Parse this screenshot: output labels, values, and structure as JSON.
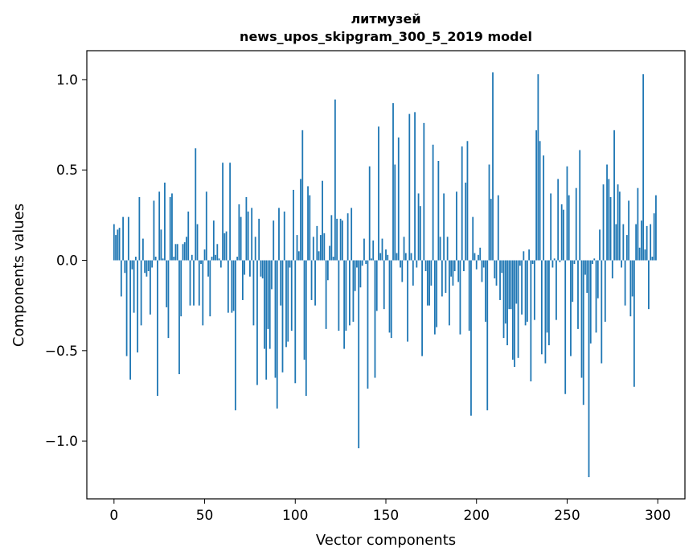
{
  "chart_data": {
    "type": "bar",
    "title": "литмузей",
    "subtitle": "news_upos_skipgram_300_5_2019 model",
    "xlabel": "Vector components",
    "ylabel": "Components values",
    "xlim": [
      -15,
      315
    ],
    "ylim": [
      -1.32,
      1.16
    ],
    "xticks": [
      0,
      50,
      100,
      150,
      200,
      250,
      300
    ],
    "xtick_labels": [
      "0",
      "50",
      "100",
      "150",
      "200",
      "250",
      "300"
    ],
    "yticks": [
      -1.0,
      -0.5,
      0.0,
      0.5,
      1.0
    ],
    "ytick_labels": [
      "−1.0",
      "−0.5",
      "0.0",
      "0.5",
      "1.0"
    ],
    "grid": false,
    "bar_color": "#1f77b4",
    "x": [
      0,
      1,
      2,
      3,
      4,
      5,
      6,
      7,
      8,
      9,
      10,
      11,
      12,
      13,
      14,
      15,
      16,
      17,
      18,
      19,
      20,
      21,
      22,
      23,
      24,
      25,
      26,
      27,
      28,
      29,
      30,
      31,
      32,
      33,
      34,
      35,
      36,
      37,
      38,
      39,
      40,
      41,
      42,
      43,
      44,
      45,
      46,
      47,
      48,
      49,
      50,
      51,
      52,
      53,
      54,
      55,
      56,
      57,
      58,
      59,
      60,
      61,
      62,
      63,
      64,
      65,
      66,
      67,
      68,
      69,
      70,
      71,
      72,
      73,
      74,
      75,
      76,
      77,
      78,
      79,
      80,
      81,
      82,
      83,
      84,
      85,
      86,
      87,
      88,
      89,
      90,
      91,
      92,
      93,
      94,
      95,
      96,
      97,
      98,
      99,
      100,
      101,
      102,
      103,
      104,
      105,
      106,
      107,
      108,
      109,
      110,
      111,
      112,
      113,
      114,
      115,
      116,
      117,
      118,
      119,
      120,
      121,
      122,
      123,
      124,
      125,
      126,
      127,
      128,
      129,
      130,
      131,
      132,
      133,
      134,
      135,
      136,
      137,
      138,
      139,
      140,
      141,
      142,
      143,
      144,
      145,
      146,
      147,
      148,
      149,
      150,
      151,
      152,
      153,
      154,
      155,
      156,
      157,
      158,
      159,
      160,
      161,
      162,
      163,
      164,
      165,
      166,
      167,
      168,
      169,
      170,
      171,
      172,
      173,
      174,
      175,
      176,
      177,
      178,
      179,
      180,
      181,
      182,
      183,
      184,
      185,
      186,
      187,
      188,
      189,
      190,
      191,
      192,
      193,
      194,
      195,
      196,
      197,
      198,
      199,
      200,
      201,
      202,
      203,
      204,
      205,
      206,
      207,
      208,
      209,
      210,
      211,
      212,
      213,
      214,
      215,
      216,
      217,
      218,
      219,
      220,
      221,
      222,
      223,
      224,
      225,
      226,
      227,
      228,
      229,
      230,
      231,
      232,
      233,
      234,
      235,
      236,
      237,
      238,
      239,
      240,
      241,
      242,
      243,
      244,
      245,
      246,
      247,
      248,
      249,
      250,
      251,
      252,
      253,
      254,
      255,
      256,
      257,
      258,
      259,
      260,
      261,
      262,
      263,
      264,
      265,
      266,
      267,
      268,
      269,
      270,
      271,
      272,
      273,
      274,
      275,
      276,
      277,
      278,
      279,
      280,
      281,
      282,
      283,
      284,
      285,
      286,
      287,
      288,
      289,
      290,
      291,
      292,
      293,
      294,
      295,
      296,
      297,
      298,
      299
    ],
    "values": [
      0.2,
      0.14,
      0.17,
      0.18,
      -0.2,
      0.24,
      -0.07,
      -0.53,
      0.24,
      -0.66,
      -0.05,
      -0.29,
      0.02,
      -0.51,
      0.35,
      -0.36,
      0.12,
      -0.07,
      -0.09,
      -0.06,
      -0.3,
      -0.04,
      0.33,
      0.02,
      -0.75,
      0.38,
      0.17,
      0.01,
      0.43,
      -0.26,
      -0.43,
      0.35,
      0.37,
      0.02,
      0.09,
      0.09,
      -0.63,
      -0.31,
      0.09,
      0.1,
      0.13,
      0.27,
      -0.25,
      0.03,
      -0.25,
      0.62,
      0.2,
      -0.25,
      -0.02,
      -0.36,
      0.06,
      0.38,
      -0.09,
      -0.31,
      0.02,
      0.22,
      0.03,
      0.09,
      0.01,
      -0.04,
      0.54,
      0.15,
      0.16,
      -0.29,
      0.54,
      -0.29,
      -0.28,
      -0.83,
      0.02,
      0.31,
      0.24,
      -0.22,
      -0.08,
      0.35,
      0.27,
      -0.09,
      0.29,
      -0.36,
      0.13,
      -0.69,
      0.23,
      -0.09,
      -0.1,
      -0.49,
      -0.66,
      -0.38,
      -0.49,
      -0.16,
      0.22,
      -0.65,
      -0.82,
      0.29,
      -0.25,
      -0.62,
      0.27,
      -0.48,
      -0.45,
      -0.04,
      -0.39,
      0.39,
      -0.68,
      0.14,
      0.05,
      0.45,
      0.72,
      -0.55,
      -0.75,
      0.41,
      0.36,
      -0.22,
      0.13,
      -0.25,
      0.19,
      0.05,
      0.14,
      0.44,
      0.15,
      -0.38,
      -0.11,
      0.08,
      0.25,
      0.02,
      0.89,
      0.23,
      -0.39,
      0.23,
      0.22,
      -0.49,
      -0.39,
      0.26,
      -0.36,
      0.29,
      -0.34,
      -0.17,
      -0.04,
      -1.04,
      -0.15,
      -0.03,
      0.12,
      -0.02,
      -0.71,
      0.52,
      0.01,
      0.11,
      -0.65,
      -0.28,
      0.74,
      0.04,
      0.12,
      -0.27,
      0.06,
      0.03,
      -0.4,
      -0.43,
      0.87,
      0.53,
      0.04,
      0.68,
      -0.04,
      -0.12,
      0.13,
      0.04,
      -0.45,
      0.81,
      0.04,
      -0.14,
      0.82,
      -0.04,
      0.37,
      0.3,
      -0.53,
      0.76,
      -0.06,
      -0.25,
      -0.25,
      -0.14,
      0.64,
      -0.41,
      -0.37,
      0.55,
      0.13,
      -0.2,
      0.37,
      -0.18,
      0.13,
      -0.36,
      -0.09,
      -0.14,
      -0.06,
      0.38,
      -0.12,
      -0.41,
      0.63,
      -0.06,
      0.43,
      0.66,
      -0.39,
      -0.86,
      0.24,
      0.04,
      -0.05,
      0.03,
      0.07,
      -0.12,
      -0.04,
      -0.34,
      -0.83,
      0.53,
      0.34,
      1.04,
      -0.1,
      -0.14,
      0.36,
      -0.22,
      -0.07,
      -0.43,
      -0.35,
      -0.47,
      -0.27,
      -0.27,
      -0.55,
      -0.59,
      -0.24,
      -0.54,
      -0.03,
      -0.3,
      0.05,
      -0.36,
      -0.34,
      0.06,
      -0.67,
      -0.02,
      -0.33,
      0.72,
      1.03,
      0.66,
      -0.52,
      0.58,
      -0.57,
      -0.4,
      -0.47,
      0.37,
      -0.04,
      0.01,
      -0.33,
      0.45,
      -0.01,
      0.31,
      0.28,
      -0.74,
      0.52,
      0.36,
      -0.53,
      -0.23,
      -0.02,
      0.4,
      -0.38,
      0.61,
      -0.65,
      -0.8,
      -0.08,
      -0.18,
      -1.2,
      -0.46,
      -0.02,
      0.01,
      -0.4,
      -0.21,
      0.17,
      -0.57,
      0.42,
      -0.34,
      0.53,
      0.45,
      0.35,
      -0.1,
      0.72,
      0.2,
      0.42,
      0.38,
      -0.04,
      0.2,
      -0.25,
      0.14,
      0.33,
      -0.31,
      -0.2,
      -0.7,
      0.2,
      0.4,
      0.07,
      0.22,
      1.03,
      0.06,
      0.19,
      -0.27,
      0.2,
      0.02,
      0.26,
      0.36
    ]
  }
}
